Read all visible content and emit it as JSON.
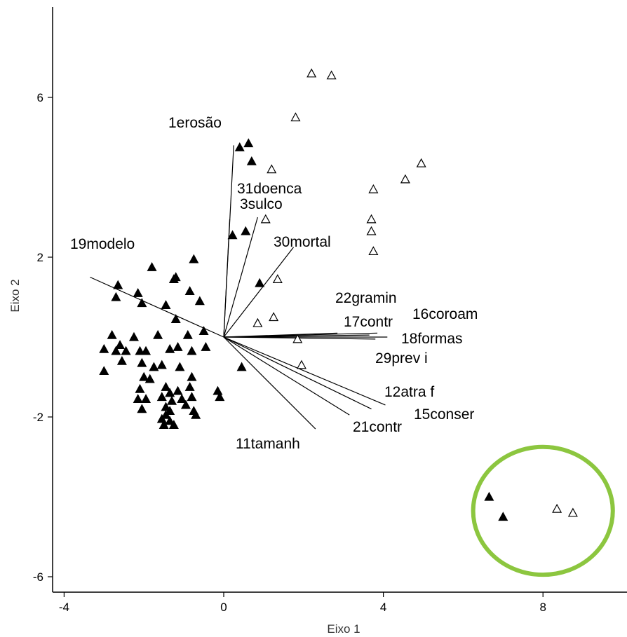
{
  "chart_data": {
    "type": "scatter",
    "title": "",
    "xlabel": "Eixo 1",
    "ylabel": "Eixo 2",
    "xlim": [
      -4.5,
      10.2
    ],
    "ylim": [
      -6.5,
      8.2
    ],
    "xticks": [
      -4,
      0,
      4,
      8
    ],
    "yticks": [
      -6,
      -2,
      2,
      6
    ],
    "xtick_labels": [
      "-4",
      "0",
      "4",
      "8"
    ],
    "ytick_labels": [
      "-6",
      "-2",
      "2",
      "6"
    ],
    "grid": false,
    "legend": "none",
    "series": [
      {
        "marker": "filled-triangle",
        "color": "#000000",
        "points": [
          [
            0.4,
            4.75
          ],
          [
            0.62,
            4.85
          ],
          [
            0.7,
            4.4
          ],
          [
            0.22,
            2.55
          ],
          [
            0.55,
            2.65
          ],
          [
            0.9,
            1.35
          ],
          [
            -1.8,
            1.75
          ],
          [
            -1.2,
            1.5
          ],
          [
            -1.25,
            1.45
          ],
          [
            -0.75,
            1.95
          ],
          [
            -2.65,
            1.3
          ],
          [
            -2.7,
            1.0
          ],
          [
            -2.15,
            1.1
          ],
          [
            -1.45,
            0.8
          ],
          [
            -0.85,
            1.15
          ],
          [
            -0.6,
            0.9
          ],
          [
            -2.05,
            0.85
          ],
          [
            -1.2,
            0.45
          ],
          [
            -2.6,
            -0.2
          ],
          [
            -2.8,
            0.05
          ],
          [
            -2.25,
            0.0
          ],
          [
            -1.65,
            0.05
          ],
          [
            -0.9,
            0.05
          ],
          [
            -0.5,
            0.15
          ],
          [
            -3.0,
            -0.3
          ],
          [
            -2.7,
            -0.35
          ],
          [
            -2.45,
            -0.35
          ],
          [
            -2.1,
            -0.35
          ],
          [
            -1.95,
            -0.35
          ],
          [
            -1.35,
            -0.3
          ],
          [
            -1.15,
            -0.25
          ],
          [
            -0.8,
            -0.35
          ],
          [
            -0.45,
            -0.25
          ],
          [
            -3.0,
            -0.85
          ],
          [
            -2.55,
            -0.6
          ],
          [
            -2.05,
            -0.65
          ],
          [
            -1.75,
            -0.75
          ],
          [
            -1.55,
            -0.7
          ],
          [
            -1.1,
            -0.75
          ],
          [
            -2.0,
            -1.0
          ],
          [
            -1.85,
            -1.05
          ],
          [
            -0.8,
            -1.0
          ],
          [
            -2.1,
            -1.3
          ],
          [
            -1.45,
            -1.25
          ],
          [
            -1.35,
            -1.4
          ],
          [
            -1.15,
            -1.35
          ],
          [
            -0.85,
            -1.25
          ],
          [
            -0.8,
            -1.5
          ],
          [
            -2.15,
            -1.55
          ],
          [
            -1.95,
            -1.55
          ],
          [
            -1.55,
            -1.5
          ],
          [
            -1.3,
            -1.6
          ],
          [
            -1.05,
            -1.55
          ],
          [
            -0.95,
            -1.7
          ],
          [
            -0.75,
            -1.85
          ],
          [
            -0.7,
            -1.95
          ],
          [
            -2.05,
            -1.8
          ],
          [
            -1.45,
            -1.75
          ],
          [
            -1.35,
            -1.85
          ],
          [
            -0.15,
            -1.35
          ],
          [
            -0.1,
            -1.5
          ],
          [
            -1.45,
            -1.95
          ],
          [
            -1.55,
            -2.05
          ],
          [
            -1.35,
            -2.1
          ],
          [
            -1.25,
            -2.2
          ],
          [
            -1.5,
            -2.2
          ],
          [
            0.45,
            -0.75
          ],
          [
            6.65,
            -4.0
          ],
          [
            7.0,
            -4.5
          ]
        ]
      },
      {
        "marker": "open-triangle",
        "color": "#000000",
        "points": [
          [
            2.2,
            6.6
          ],
          [
            2.7,
            6.55
          ],
          [
            1.8,
            5.5
          ],
          [
            1.2,
            4.2
          ],
          [
            4.55,
            3.95
          ],
          [
            4.95,
            4.35
          ],
          [
            3.75,
            3.7
          ],
          [
            1.05,
            2.95
          ],
          [
            3.7,
            2.95
          ],
          [
            3.7,
            2.65
          ],
          [
            3.75,
            2.15
          ],
          [
            1.35,
            1.45
          ],
          [
            0.85,
            0.35
          ],
          [
            1.25,
            0.5
          ],
          [
            1.85,
            -0.05
          ],
          [
            1.95,
            -0.7
          ],
          [
            8.35,
            -4.3
          ],
          [
            8.75,
            -4.4
          ]
        ]
      }
    ],
    "vectors": [
      {
        "label": "1erosão",
        "end": [
          0.25,
          4.8
        ]
      },
      {
        "label": "31doenca",
        "end": [
          0.15,
          2.95
        ]
      },
      {
        "label": "3sulco",
        "end": [
          0.85,
          3.0
        ]
      },
      {
        "label": "30mortal",
        "end": [
          1.75,
          2.25
        ]
      },
      {
        "label": "19modelo",
        "end": [
          -3.35,
          1.5
        ]
      },
      {
        "label": "22gramin",
        "end": [
          2.85,
          0.1
        ]
      },
      {
        "label": "17contr",
        "end": [
          3.65,
          0.05
        ]
      },
      {
        "label": "16coroam",
        "end": [
          3.85,
          0.1
        ]
      },
      {
        "label": "18formas",
        "end": [
          4.1,
          0.0
        ]
      },
      {
        "label": "29prev i",
        "end": [
          3.8,
          -0.05
        ]
      },
      {
        "label": "12atra f",
        "end": [
          4.05,
          -1.7
        ]
      },
      {
        "label": "15conser",
        "end": [
          3.7,
          -1.8
        ]
      },
      {
        "label": "21contr",
        "end": [
          3.15,
          -1.95
        ]
      },
      {
        "label": "11tamanh",
        "end": [
          2.3,
          -2.3
        ]
      }
    ],
    "annotations": [
      {
        "type": "ellipse",
        "color": "#8cc63f",
        "center": [
          8.0,
          -4.35
        ],
        "radius_x": 1.75,
        "radius_y": 1.6
      }
    ]
  }
}
